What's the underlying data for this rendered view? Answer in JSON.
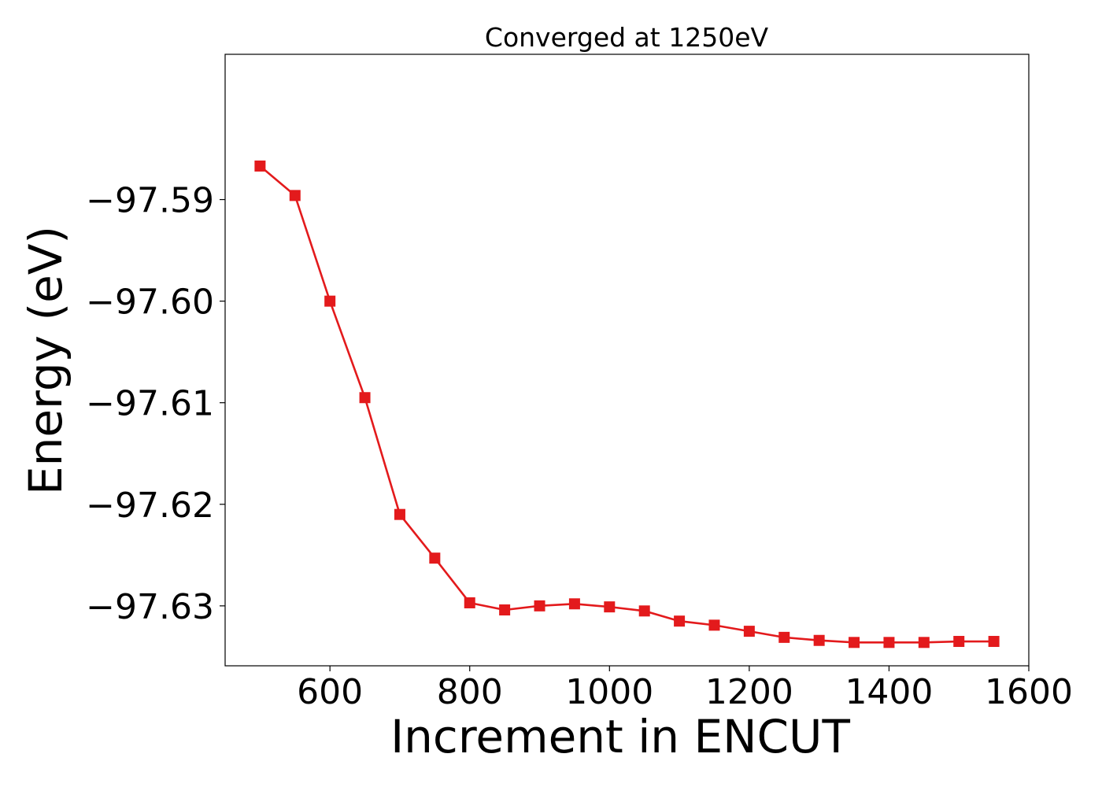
{
  "chart_data": {
    "type": "line",
    "title": "Converged at 1250eV",
    "xlabel": "Increment in ENCUT",
    "ylabel": "Energy (eV)",
    "xlim": [
      450,
      1600
    ],
    "ylim": [
      -97.6359,
      -97.5757
    ],
    "xticks": [
      600,
      800,
      1000,
      1200,
      1400,
      1600
    ],
    "xtick_labels": [
      "600",
      "800",
      "1000",
      "1200",
      "1400",
      "1600"
    ],
    "yticks": [
      -97.59,
      -97.6,
      -97.61,
      -97.62,
      -97.63
    ],
    "ytick_labels": [
      "−97.59",
      "−97.60",
      "−97.61",
      "−97.62",
      "−97.63"
    ],
    "grid": false,
    "series": [
      {
        "color": "#e31a1c",
        "marker": "square",
        "x": [
          500,
          550,
          600,
          650,
          700,
          750,
          800,
          850,
          900,
          950,
          1000,
          1050,
          1100,
          1150,
          1200,
          1250,
          1300,
          1350,
          1400,
          1450,
          1500,
          1550
        ],
        "y": [
          -97.5867,
          -97.5896,
          -97.6,
          -97.6095,
          -97.621,
          -97.6253,
          -97.6297,
          -97.6304,
          -97.63,
          -97.6298,
          -97.6301,
          -97.6305,
          -97.6315,
          -97.6319,
          -97.6325,
          -97.6331,
          -97.6334,
          -97.6336,
          -97.6336,
          -97.6336,
          -97.6335,
          -97.6335
        ]
      }
    ]
  }
}
